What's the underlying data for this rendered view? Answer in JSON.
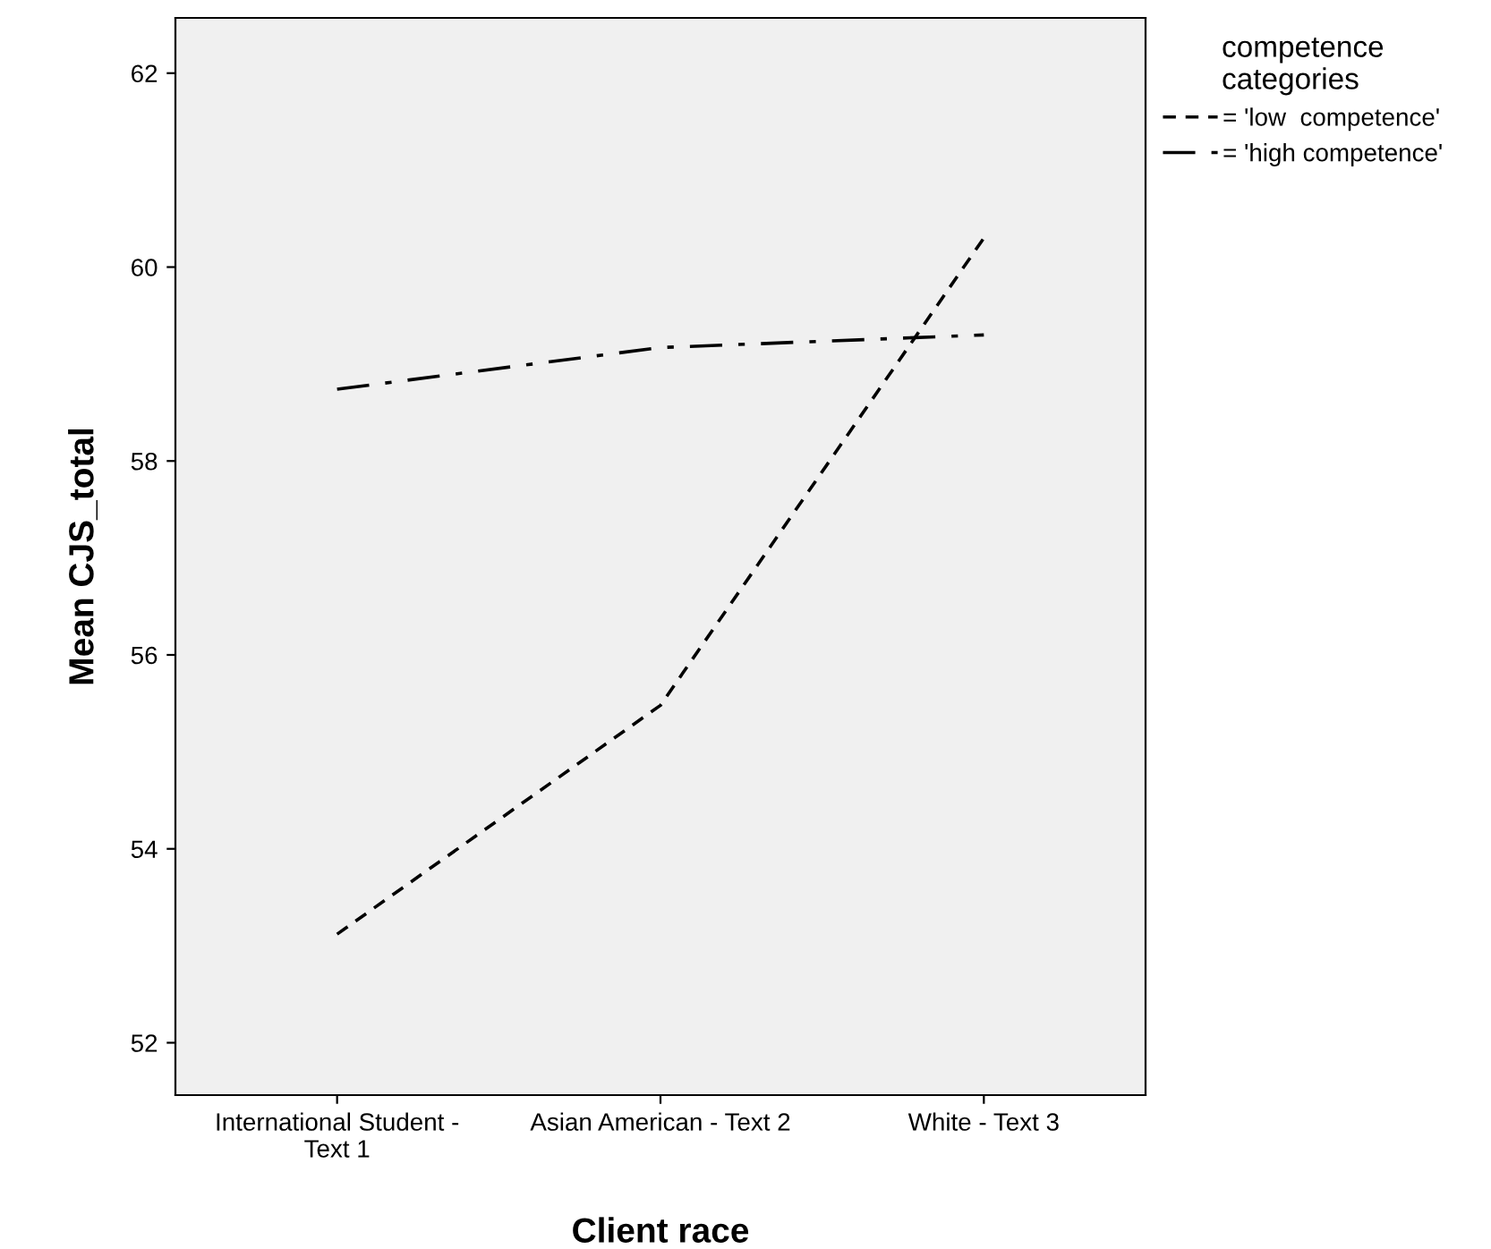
{
  "chart_data": {
    "type": "line",
    "xlabel": "Client race",
    "ylabel": "Mean CJS_total",
    "legend_title": "competence\ncategories",
    "categories": [
      "International Student -\nText 1",
      "Asian American - Text 2",
      "White - Text 3"
    ],
    "series": [
      {
        "name": "= 'low  competence'",
        "color": "#000000",
        "values": [
          53.12,
          55.48,
          60.3
        ],
        "line_style": "dotted"
      },
      {
        "name": "= 'high competence'",
        "color": "#000000",
        "values": [
          58.74,
          59.17,
          59.3
        ],
        "line_style": "dashed"
      }
    ],
    "ylim": [
      51.46,
      62.57
    ],
    "yticks": [
      52,
      54,
      56,
      58,
      60,
      62
    ],
    "grid": false,
    "legend": "top right",
    "marker": "none"
  }
}
